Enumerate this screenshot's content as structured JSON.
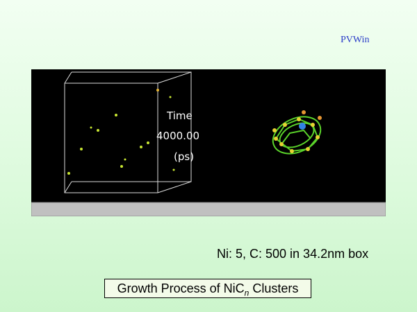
{
  "header": {
    "app": "PVWin"
  },
  "viewer": {
    "time_label": "Time",
    "time_value": "4000.00",
    "time_unit": "(ps)"
  },
  "caption": "Ni: 5, C: 500 in 34.2nm box",
  "title": {
    "text": "Growth Process of NiC",
    "subscript": "n",
    "suffix": " Clusters"
  }
}
